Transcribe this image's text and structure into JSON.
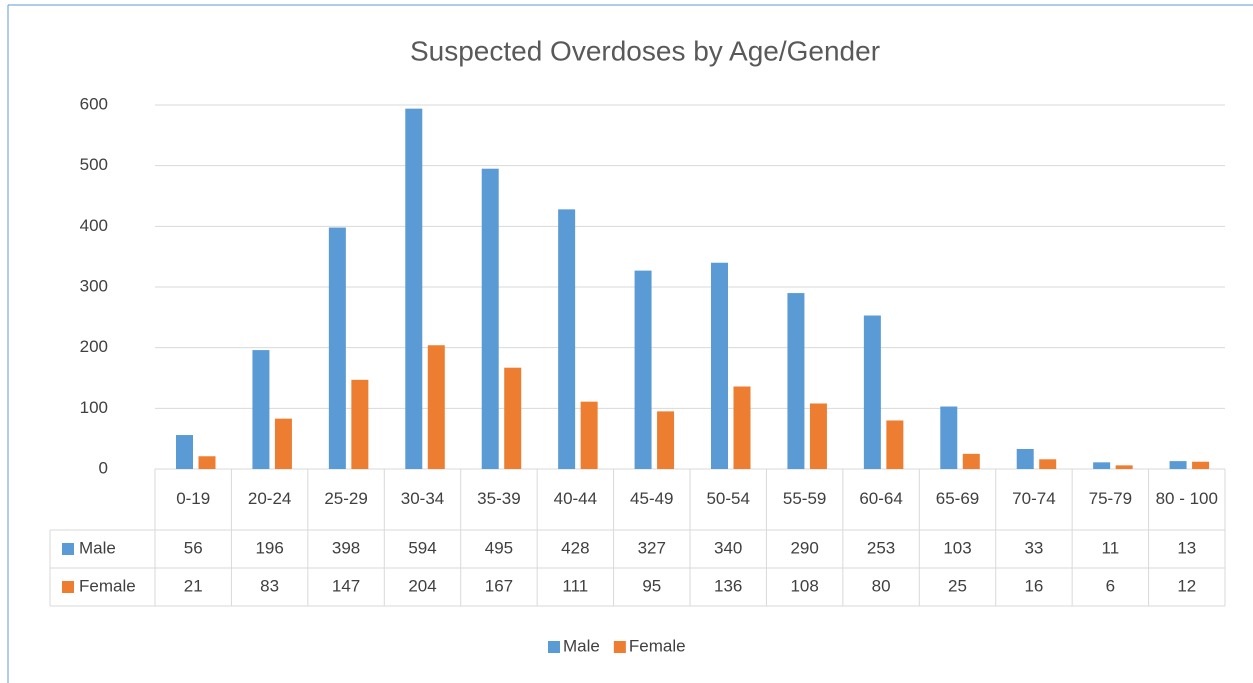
{
  "chart_data": {
    "type": "bar",
    "title": "Suspected Overdoses by Age/Gender",
    "categories": [
      "0-19",
      "20-24",
      "25-29",
      "30-34",
      "35-39",
      "40-44",
      "45-49",
      "50-54",
      "55-59",
      "60-64",
      "65-69",
      "70-74",
      "75-79",
      "80 - 100"
    ],
    "series": [
      {
        "name": "Male",
        "color": "#5b9bd5",
        "values": [
          56,
          196,
          398,
          594,
          495,
          428,
          327,
          340,
          290,
          253,
          103,
          33,
          11,
          13
        ]
      },
      {
        "name": "Female",
        "color": "#ed7d31",
        "values": [
          21,
          83,
          147,
          204,
          167,
          111,
          95,
          136,
          108,
          80,
          25,
          16,
          6,
          12
        ]
      }
    ],
    "ylim": [
      0,
      600
    ],
    "yticks": [
      0,
      100,
      200,
      300,
      400,
      500,
      600
    ],
    "grid": true,
    "legend": "bottom"
  }
}
